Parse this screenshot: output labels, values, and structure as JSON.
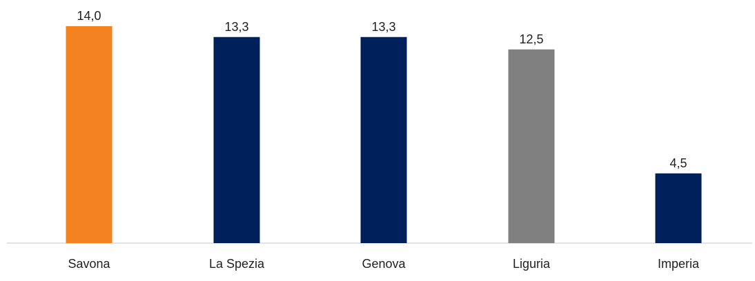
{
  "chart_data": {
    "type": "bar",
    "categories": [
      "Savona",
      "La Spezia",
      "Genova",
      "Liguria",
      "Imperia"
    ],
    "values": [
      14.0,
      13.3,
      13.3,
      12.5,
      4.5
    ],
    "value_labels": [
      "14,0",
      "13,3",
      "13,3",
      "12,5",
      "4,5"
    ],
    "bar_colors": [
      "#F58220",
      "#00205B",
      "#00205B",
      "#808080",
      "#00205B"
    ],
    "axis_line_color": "#D9D9D9",
    "ylim": [
      0,
      14.5
    ],
    "grid": false,
    "legend": false
  }
}
